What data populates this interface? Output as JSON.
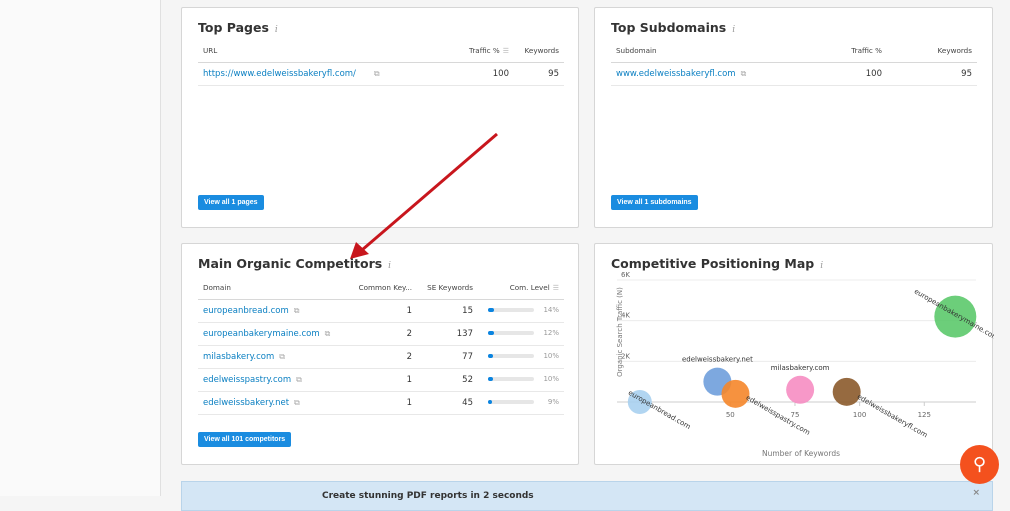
{
  "top_pages": {
    "title": "Top Pages",
    "columns": [
      "URL",
      "Traffic %",
      "Keywords"
    ],
    "rows": [
      {
        "url": "https://www.edelweissbakeryfl.com/",
        "traffic": "100",
        "keywords": "95"
      }
    ],
    "button": "View all 1 pages"
  },
  "top_subdomains": {
    "title": "Top Subdomains",
    "columns": [
      "Subdomain",
      "Traffic %",
      "Keywords"
    ],
    "rows": [
      {
        "url": "www.edelweissbakeryfl.com",
        "traffic": "100",
        "keywords": "95"
      }
    ],
    "button": "View all 1 subdomains"
  },
  "competitors": {
    "title": "Main Organic Competitors",
    "columns": [
      "Domain",
      "Common Key...",
      "SE Keywords",
      "Com. Level"
    ],
    "rows": [
      {
        "domain": "europeanbread.com",
        "common": "1",
        "se": "15",
        "level": "14%",
        "level_value": 14
      },
      {
        "domain": "europeanbakerymaine.com",
        "common": "2",
        "se": "137",
        "level": "12%",
        "level_value": 12
      },
      {
        "domain": "milasbakery.com",
        "common": "2",
        "se": "77",
        "level": "10%",
        "level_value": 10
      },
      {
        "domain": "edelweisspastry.com",
        "common": "1",
        "se": "52",
        "level": "10%",
        "level_value": 10
      },
      {
        "domain": "edelweissbakery.net",
        "common": "1",
        "se": "45",
        "level": "9%",
        "level_value": 9
      }
    ],
    "button": "View all 101 competitors"
  },
  "map": {
    "title": "Competitive Positioning Map"
  },
  "chart_data": {
    "type": "scatter",
    "title": "Competitive Positioning Map",
    "xlabel": "Number of Keywords",
    "ylabel": "Organic Search Traffic (N)",
    "xlim": [
      0,
      145
    ],
    "ylim": [
      0,
      6000
    ],
    "xticks": [
      "50",
      "75",
      "100",
      "125"
    ],
    "yticks": [
      "2K",
      "4K",
      "6K"
    ],
    "grid": true,
    "points": [
      {
        "label": "europeanbread.com",
        "x": 15,
        "y": 0,
        "color": "#a8d0f0"
      },
      {
        "label": "edelweissbakery.net",
        "x": 45,
        "y": 1000,
        "color": "#6f9fdc"
      },
      {
        "label": "edelweisspastry.com",
        "x": 52,
        "y": 400,
        "color": "#f5862a"
      },
      {
        "label": "milasbakery.com",
        "x": 77,
        "y": 600,
        "color": "#f68dc2"
      },
      {
        "label": "edelweissbakeryfl.com",
        "x": 95,
        "y": 500,
        "color": "#8b5a2b"
      },
      {
        "label": "europeanbakerymaine.com",
        "x": 137,
        "y": 4200,
        "color": "#5cc96b"
      }
    ]
  },
  "banner": {
    "text": "Create stunning PDF reports in 2 seconds",
    "close": "×"
  },
  "help_button": {
    "icon": "search-icon"
  }
}
